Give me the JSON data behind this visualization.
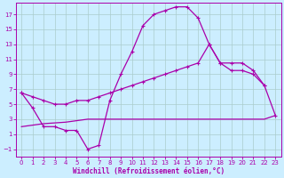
{
  "xlabel": "Windchill (Refroidissement éolien,°C)",
  "bg_color": "#cceeff",
  "grid_color": "#aacccc",
  "line_color": "#aa00aa",
  "xlim": [
    -0.5,
    23.5
  ],
  "ylim": [
    -2,
    18.5
  ],
  "yticks": [
    -1,
    1,
    3,
    5,
    7,
    9,
    11,
    13,
    15,
    17
  ],
  "xticks": [
    0,
    1,
    2,
    3,
    4,
    5,
    6,
    7,
    8,
    9,
    10,
    11,
    12,
    13,
    14,
    15,
    16,
    17,
    18,
    19,
    20,
    21,
    22,
    23
  ],
  "line1_x": [
    0,
    1,
    2,
    3,
    4,
    5,
    6,
    7,
    8,
    9,
    10,
    11,
    12,
    13,
    14,
    15,
    16,
    17,
    18,
    19,
    20,
    21,
    22
  ],
  "line1_y": [
    6.5,
    4.5,
    2.0,
    2.0,
    1.5,
    1.5,
    -1.0,
    -0.5,
    5.5,
    9.0,
    12.0,
    15.5,
    17.0,
    17.5,
    18.0,
    18.0,
    16.5,
    13.0,
    10.5,
    9.5,
    9.5,
    9.0,
    7.5
  ],
  "line2_x": [
    0,
    1,
    2,
    3,
    4,
    5,
    6,
    7,
    8,
    9,
    10,
    11,
    12,
    13,
    14,
    15,
    16,
    17,
    18,
    19,
    20,
    21,
    22,
    23
  ],
  "line2_y": [
    6.5,
    6.0,
    5.5,
    5.0,
    5.0,
    5.5,
    5.5,
    6.0,
    6.5,
    7.0,
    7.5,
    8.0,
    8.5,
    9.0,
    9.5,
    10.0,
    10.5,
    13.0,
    10.5,
    10.5,
    10.5,
    9.5,
    7.5,
    3.5
  ],
  "line3_x": [
    0,
    1,
    2,
    3,
    4,
    5,
    6,
    7,
    8,
    9,
    10,
    11,
    12,
    13,
    14,
    15,
    16,
    17,
    18,
    19,
    20,
    21,
    22,
    23
  ],
  "line3_y": [
    2.0,
    2.2,
    2.4,
    2.5,
    2.6,
    2.8,
    3.0,
    3.0,
    3.0,
    3.0,
    3.0,
    3.0,
    3.0,
    3.0,
    3.0,
    3.0,
    3.0,
    3.0,
    3.0,
    3.0,
    3.0,
    3.0,
    3.0,
    3.5
  ]
}
